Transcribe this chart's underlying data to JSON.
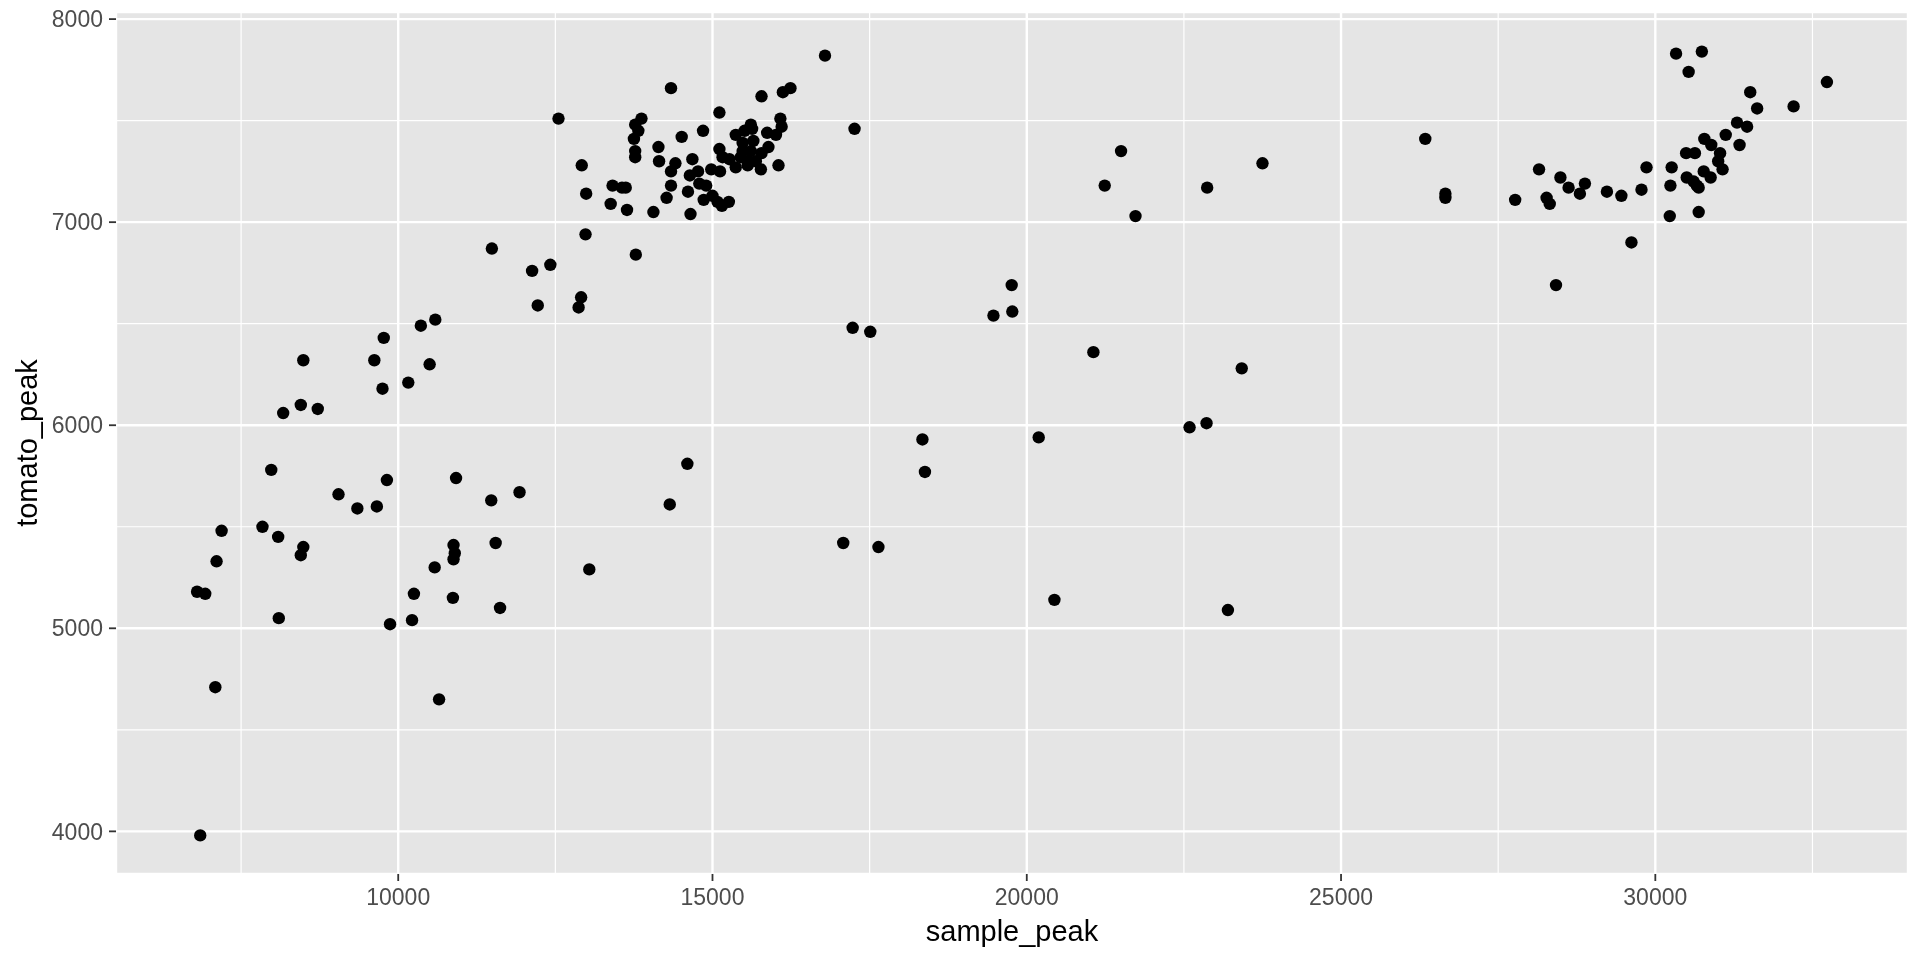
{
  "chart_data": {
    "type": "scatter",
    "xlabel": "sample_peak",
    "ylabel": "tomato_peak",
    "x": [
      9770,
      8490,
      9620,
      10500,
      10160,
      9750,
      8450,
      8720,
      8170,
      7980,
      9820,
      10920,
      9050,
      9350,
      9660,
      11480,
      11930,
      7190,
      7840,
      8090,
      8490,
      8450,
      7110,
      6800,
      6930,
      8100,
      10880,
      10900,
      10880,
      10580,
      11550,
      13040,
      10250,
      10870,
      11620,
      9870,
      10220,
      7090,
      10650,
      6850,
      10360,
      10590,
      11490,
      16790,
      14340,
      15780,
      16120,
      16240,
      12550,
      15110,
      17260,
      13870,
      13770,
      13820,
      13750,
      13770,
      13770,
      14140,
      14510,
      14850,
      12920,
      14150,
      14410,
      14340,
      14680,
      14770,
      14640,
      14980,
      15120,
      15110,
      15160,
      15270,
      15370,
      15370,
      15510,
      15610,
      15630,
      15480,
      15650,
      15480,
      15610,
      15450,
      15560,
      15690,
      15560,
      15780,
      15890,
      15870,
      16010,
      16080,
      16100,
      15770,
      16050,
      13410,
      13560,
      13620,
      12990,
      14340,
      14610,
      14270,
      13380,
      13640,
      14060,
      14650,
      14790,
      14900,
      14860,
      15000,
      15080,
      15150,
      15260,
      12980,
      13780,
      12420,
      12130,
      12910,
      12870,
      12220,
      21500,
      21240,
      21730,
      22870,
      23750,
      19760,
      19770,
      19470,
      17230,
      17510,
      21060,
      23420,
      18340,
      18380,
      20190,
      22590,
      22860,
      14600,
      14320,
      17080,
      17640,
      20440,
      23200,
      26340,
      26660,
      26660,
      27770,
      28150,
      28490,
      28270,
      28320,
      28620,
      28880,
      28800,
      29230,
      29460,
      29780,
      29860,
      29620,
      28420,
      30330,
      30740,
      30530,
      31510,
      31620,
      32200,
      31300,
      31460,
      31120,
      30780,
      30890,
      31340,
      30490,
      30630,
      31030,
      31000,
      30260,
      30770,
      31070,
      30500,
      30610,
      30880,
      30690,
      30660,
      30240,
      30230,
      30690,
      32730
    ],
    "values": [
      6430,
      6320,
      6320,
      6300,
      6210,
      6180,
      6100,
      6080,
      6060,
      5780,
      5730,
      5740,
      5660,
      5590,
      5600,
      5630,
      5670,
      5480,
      5500,
      5450,
      5400,
      5360,
      5330,
      5180,
      5170,
      5050,
      5410,
      5370,
      5340,
      5300,
      5420,
      5290,
      5170,
      5150,
      5100,
      5020,
      5040,
      4710,
      4650,
      3980,
      6490,
      6520,
      6870,
      7820,
      7660,
      7620,
      7640,
      7660,
      7510,
      7540,
      7460,
      7510,
      7480,
      7450,
      7410,
      7350,
      7320,
      7370,
      7420,
      7450,
      7280,
      7300,
      7290,
      7250,
      7310,
      7250,
      7230,
      7260,
      7250,
      7360,
      7320,
      7310,
      7430,
      7270,
      7450,
      7480,
      7460,
      7390,
      7400,
      7350,
      7350,
      7320,
      7300,
      7300,
      7280,
      7340,
      7370,
      7440,
      7430,
      7510,
      7470,
      7260,
      7280,
      7180,
      7170,
      7170,
      7140,
      7180,
      7150,
      7120,
      7090,
      7060,
      7050,
      7040,
      7190,
      7180,
      7110,
      7130,
      7100,
      7080,
      7100,
      6940,
      6840,
      6790,
      6760,
      6630,
      6580,
      6590,
      7350,
      7180,
      7030,
      7170,
      7290,
      6690,
      6560,
      6540,
      6480,
      6460,
      6360,
      6280,
      5930,
      5770,
      5940,
      5990,
      6010,
      5810,
      5610,
      5420,
      5400,
      5140,
      5090,
      7410,
      7140,
      7120,
      7110,
      7260,
      7220,
      7120,
      7090,
      7170,
      7190,
      7140,
      7150,
      7130,
      7160,
      7270,
      6900,
      6690,
      7830,
      7840,
      7740,
      7640,
      7560,
      7570,
      7490,
      7470,
      7430,
      7410,
      7380,
      7380,
      7340,
      7340,
      7340,
      7300,
      7270,
      7250,
      7260,
      7220,
      7200,
      7220,
      7170,
      7180,
      7180,
      7030,
      7050,
      7690
    ],
    "color": "#000000",
    "marker": "circle",
    "xlim": [
      5510,
      34020
    ],
    "ylim": [
      3790,
      8035
    ],
    "xticks": [
      10000,
      15000,
      20000,
      25000,
      30000
    ],
    "yticks": [
      4000,
      5000,
      6000,
      7000,
      8000
    ],
    "grid": true
  }
}
